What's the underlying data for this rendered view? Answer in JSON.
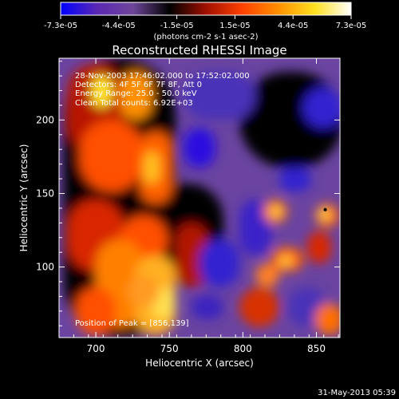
{
  "colorbar": {
    "tick_labels": [
      "-7.3e-05",
      "-4.4e-05",
      "-1.5e-05",
      "1.5e-05",
      "4.4e-05",
      "7.3e-05"
    ],
    "range": [
      -7.3e-05,
      7.3e-05
    ],
    "unit_label": "(photons cm-2 s-1 asec-2)",
    "colors": [
      "#0000ff",
      "#5a28b4",
      "#6e4699",
      "#000000",
      "#a01000",
      "#ff4000",
      "#ff9000",
      "#ffe020",
      "#ffffff"
    ]
  },
  "chart_data": {
    "type": "heatmap",
    "title": "Reconstructed RHESSI Image",
    "xlabel": "Heliocentric X (arcsec)",
    "ylabel": "Heliocentric Y (arcsec)",
    "xlim": [
      675,
      866
    ],
    "ylim": [
      52,
      242
    ],
    "x_ticks": [
      700,
      750,
      800,
      850
    ],
    "y_ticks": [
      100,
      150,
      200
    ],
    "x_tick_labels": [
      "700",
      "750",
      "800",
      "850"
    ],
    "y_tick_labels": [
      "100",
      "150",
      "200"
    ],
    "annotations": [
      "28-Nov-2003 17:46:02.000 to 17:52:02.000",
      "Detectors: 4F 5F 6F 7F 8F, Att 0",
      "Energy Range: 25.0 - 50.0 keV",
      "Clean    Total counts: 6.92E+03"
    ],
    "peak_label": "Position of Peak = [856,139]",
    "peak": [
      856,
      139
    ],
    "grid": false
  },
  "footer": {
    "timestamp": "31-May-2013 05:39"
  }
}
